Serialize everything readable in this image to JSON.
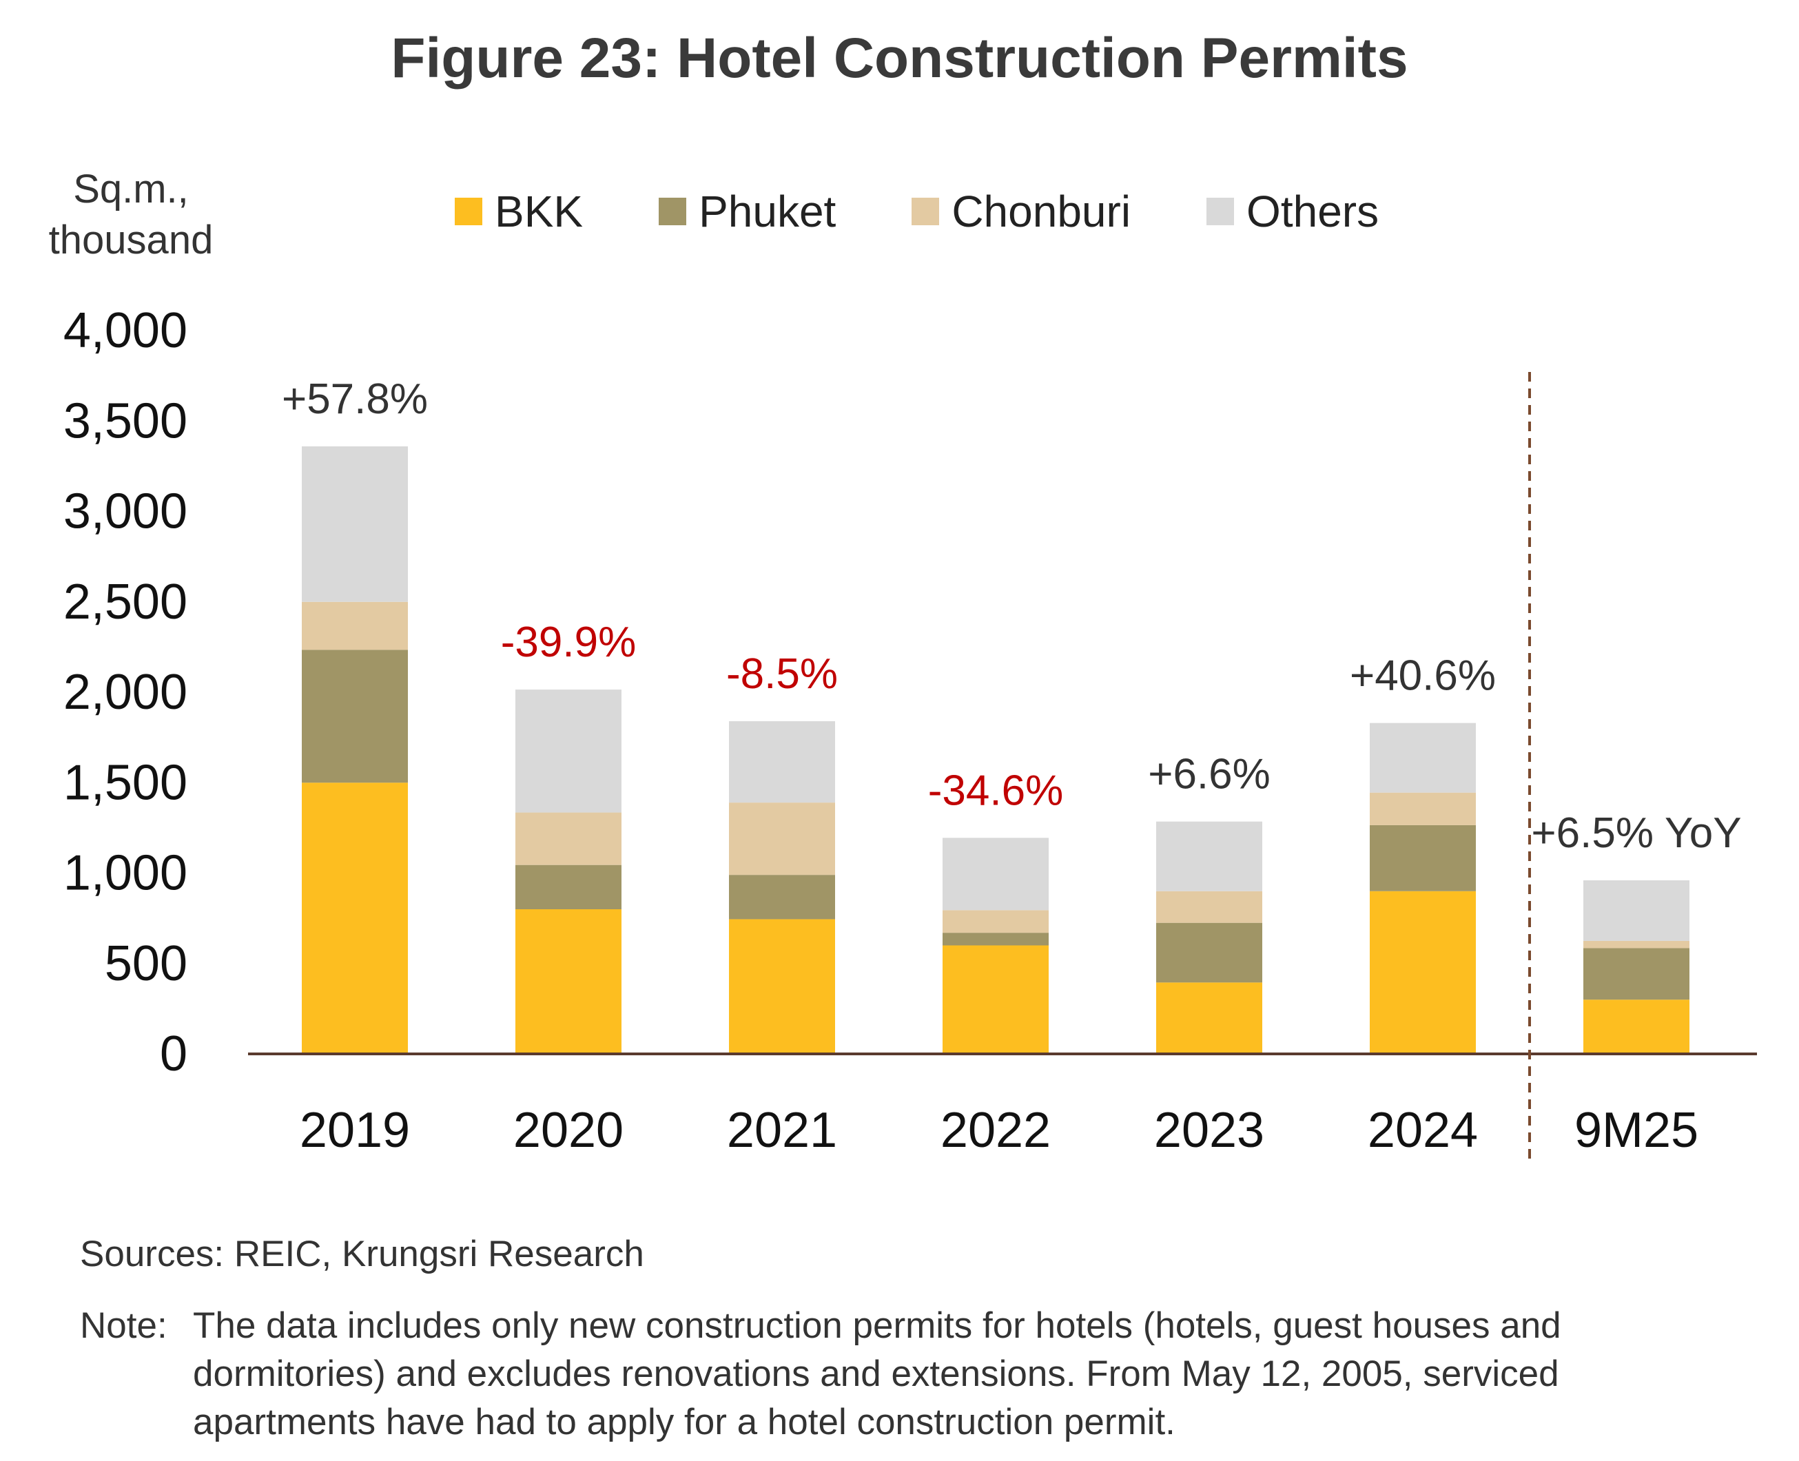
{
  "title": "Figure 23: Hotel Construction Permits",
  "unit_line1": "Sq.m.,",
  "unit_line2": "thousand",
  "source": "Sources: REIC, Krungsri Research",
  "note_label": "Note:",
  "note_text": "The data includes only new construction permits for hotels (hotels, guest houses and dormitories) and excludes renovations and extensions. From May 12, 2005, serviced apartments have had to apply for a hotel construction permit.",
  "chart_data": {
    "type": "bar",
    "stacked": true,
    "title": "Figure 23: Hotel Construction Permits",
    "ylabel": "Sq.m., thousand",
    "xlabel": "",
    "ylim": [
      0,
      4000
    ],
    "yticks": [
      0,
      500,
      1000,
      1500,
      2000,
      2500,
      3000,
      3500,
      4000
    ],
    "ytick_labels": [
      "0",
      "500",
      "1,000",
      "1,500",
      "2,000",
      "2,500",
      "3,000",
      "3,500",
      "4,000"
    ],
    "categories": [
      "2019",
      "2020",
      "2021",
      "2022",
      "2023",
      "2024",
      "9M25"
    ],
    "series": [
      {
        "name": "BKK",
        "color": "#FDBE20",
        "values": [
          1500,
          800,
          745,
          600,
          395,
          900,
          300
        ]
      },
      {
        "name": "Phuket",
        "color": "#A09566",
        "values": [
          735,
          245,
          245,
          70,
          330,
          365,
          285
        ]
      },
      {
        "name": "Chonburi",
        "color": "#E3CAA2",
        "values": [
          265,
          290,
          400,
          125,
          175,
          180,
          40
        ]
      },
      {
        "name": "Others",
        "color": "#D9D9D9",
        "values": [
          860,
          680,
          450,
          400,
          385,
          385,
          335
        ]
      }
    ],
    "annotations": [
      {
        "category": "2019",
        "text": "+57.8%",
        "color": "#333333"
      },
      {
        "category": "2020",
        "text": "-39.9%",
        "color": "#C00000"
      },
      {
        "category": "2021",
        "text": "-8.5%",
        "color": "#C00000"
      },
      {
        "category": "2022",
        "text": "-34.6%",
        "color": "#C00000"
      },
      {
        "category": "2023",
        "text": "+6.6%",
        "color": "#333333"
      },
      {
        "category": "2024",
        "text": "+40.6%",
        "color": "#333333"
      },
      {
        "category": "9M25",
        "text": "+6.5% YoY",
        "color": "#333333"
      }
    ],
    "divider_between": [
      "2024",
      "9M25"
    ],
    "legend_position": "top-center"
  }
}
